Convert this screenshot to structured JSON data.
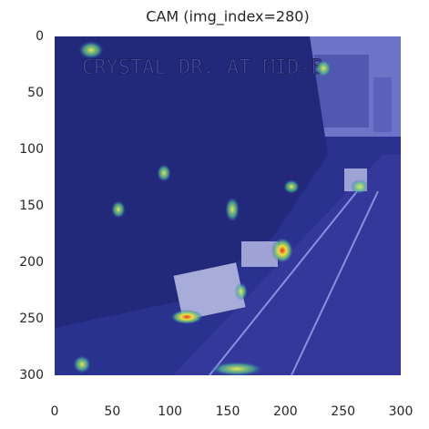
{
  "chart_data": {
    "type": "image",
    "title": "CAM (img_index=280)",
    "xlim": [
      0,
      300
    ],
    "ylim": [
      300,
      0
    ],
    "xticks": [
      0,
      50,
      100,
      150,
      200,
      250,
      300
    ],
    "yticks": [
      0,
      50,
      100,
      150,
      200,
      250,
      300
    ]
  }
}
